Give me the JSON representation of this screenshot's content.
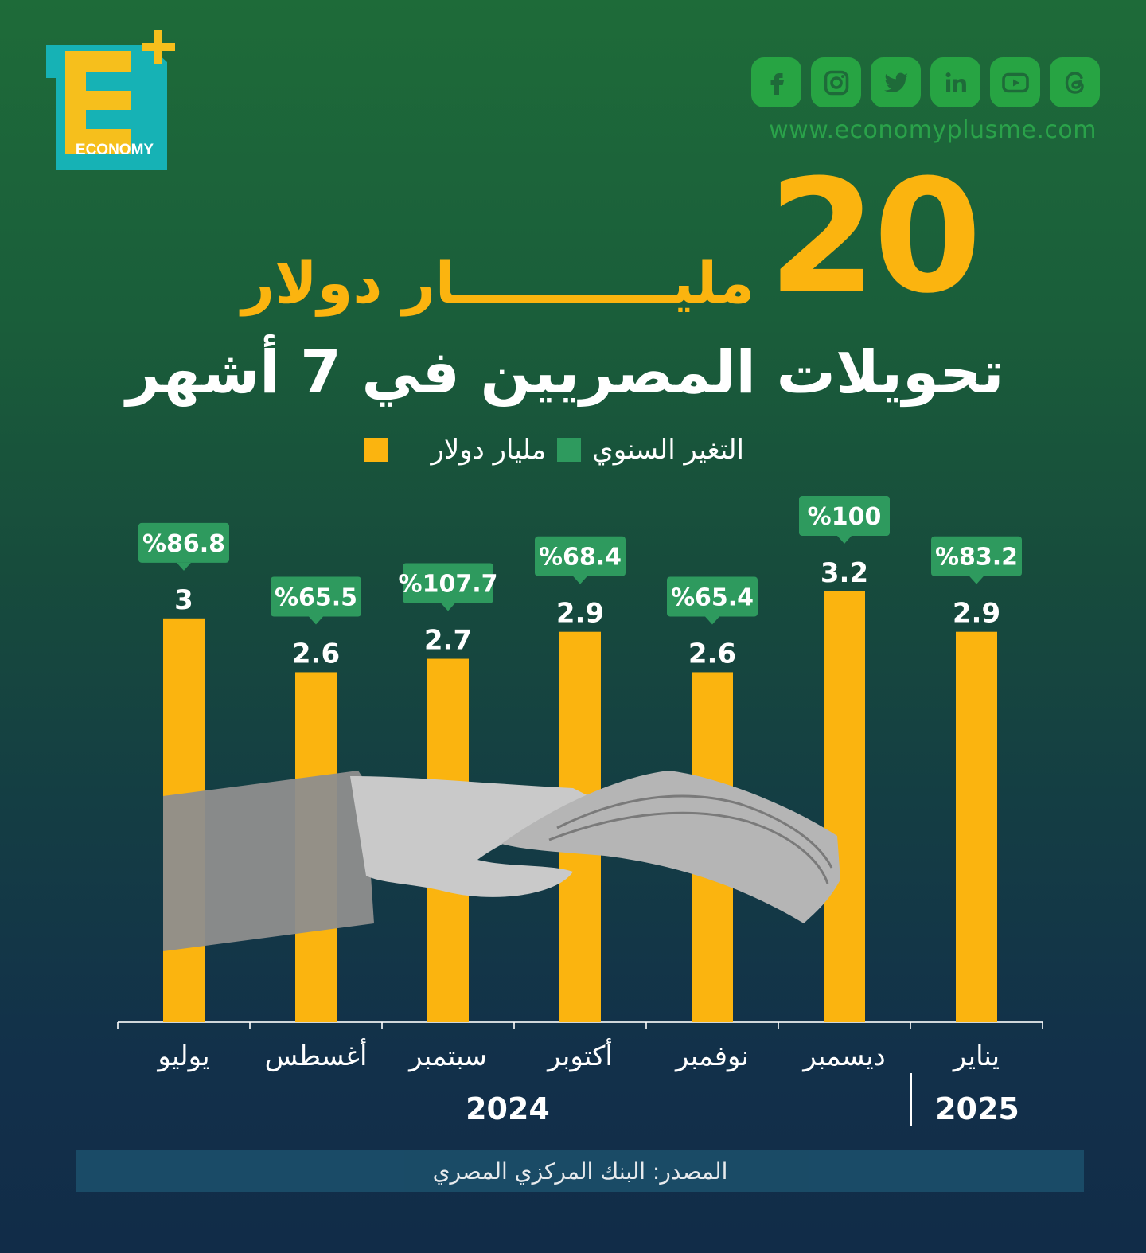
{
  "brand": {
    "logo_text": "ECONOMY",
    "website": "www.economyplusme.com",
    "social_icons": [
      "facebook-icon",
      "instagram-icon",
      "twitter-icon",
      "linkedin-icon",
      "youtube-icon",
      "threads-icon"
    ]
  },
  "headline": {
    "number": "20",
    "unit": "مليـــــــــــار دولار",
    "subtitle": "تحويلات المصريين في 7 أشهر"
  },
  "legend": [
    {
      "label": "مليار دولار",
      "color": "#fbb40f"
    },
    {
      "label": "التغير السنوي",
      "color": "#2e9a5e"
    }
  ],
  "colors": {
    "bar": "#fbb40f",
    "badge": "#2e9a5e",
    "accent": "#fbb40f"
  },
  "chart_data": {
    "type": "bar",
    "categories": [
      "يوليو",
      "أغسطس",
      "سبتمبر",
      "أكتوبر",
      "نوفمبر",
      "ديسمبر",
      "يناير"
    ],
    "values": [
      3,
      2.6,
      2.7,
      2.9,
      2.6,
      3.2,
      2.9
    ],
    "value_labels": [
      "3",
      "2.6",
      "2.7",
      "2.9",
      "2.6",
      "3.2",
      "2.9"
    ],
    "series": [
      {
        "name": "مليار دولار",
        "values": [
          3,
          2.6,
          2.7,
          2.9,
          2.6,
          3.2,
          2.9
        ]
      },
      {
        "name": "التغير السنوي",
        "values": [
          86.8,
          65.5,
          107.7,
          68.4,
          65.4,
          100,
          83.2
        ]
      }
    ],
    "change_labels": [
      "%86.8",
      "%65.5",
      "%107.7",
      "%68.4",
      "%65.4",
      "%100",
      "%83.2"
    ],
    "year_groups": [
      {
        "label": "2024",
        "categories": [
          "يوليو",
          "أغسطس",
          "سبتمبر",
          "أكتوبر",
          "نوفمبر",
          "ديسمبر"
        ]
      },
      {
        "label": "2025",
        "categories": [
          "يناير"
        ]
      }
    ],
    "ylim": [
      0,
      3.2
    ],
    "grid": false,
    "legend_position": "top"
  },
  "source": "المصدر: البنك المركزي المصري"
}
